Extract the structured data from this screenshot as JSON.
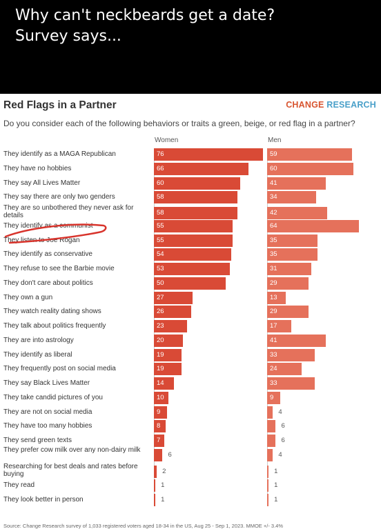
{
  "meme": {
    "caption": "Why can't neckbeards get a date?\nSurvey says..."
  },
  "brand": {
    "part1": "CHANGE",
    "part2": "RESEARCH",
    "color1": "#d8542f",
    "color2": "#4aa0c9"
  },
  "colors": {
    "women_bar": "#d94a36",
    "men_bar": "#e5715b",
    "annotation": "#d8342c"
  },
  "footnote": "Source: Change Research survey of 1,033 registered voters aged 18-34 in the US, Aug 25 - Sep 1, 2023. MMOE +/- 3.4%",
  "chart_data": {
    "type": "bar",
    "orientation": "horizontal",
    "title": "Red Flags in a Partner",
    "subtitle": "Do you consider each of the following behaviors or traits a green, beige, or red flag in a partner?",
    "categories": [
      "They identify as a MAGA Republican",
      "They have no hobbies",
      "They say All Lives Matter",
      "They say there are only two genders",
      "They are so unbothered they never ask for details",
      "They identify as a communist",
      "They listen to Joe Rogan",
      "They identify as conservative",
      "They refuse to see the Barbie movie",
      "They don't care about politics",
      "They own a gun",
      "They watch reality dating shows",
      "They talk about politics frequently",
      "They are into astrology",
      "They identify as liberal",
      "They frequently post on social media",
      "They say Black Lives Matter",
      "They take candid pictures of you",
      "They are not on social media",
      "They have too many hobbies",
      "They send green texts",
      "They prefer cow milk over any non-dairy milk",
      "Researching for best deals and rates before buying",
      "They read",
      "They look better in person"
    ],
    "series": [
      {
        "name": "Women",
        "values": [
          76,
          66,
          60,
          58,
          58,
          55,
          55,
          54,
          53,
          50,
          27,
          26,
          23,
          20,
          19,
          19,
          14,
          10,
          9,
          8,
          7,
          6,
          2,
          1,
          1
        ]
      },
      {
        "name": "Men",
        "values": [
          59,
          60,
          41,
          34,
          42,
          64,
          35,
          35,
          31,
          29,
          13,
          29,
          17,
          41,
          33,
          24,
          33,
          9,
          4,
          6,
          6,
          4,
          1,
          1,
          1
        ]
      }
    ],
    "xlim": [
      0,
      76
    ],
    "grid": false,
    "legend": "column headers above bars"
  }
}
